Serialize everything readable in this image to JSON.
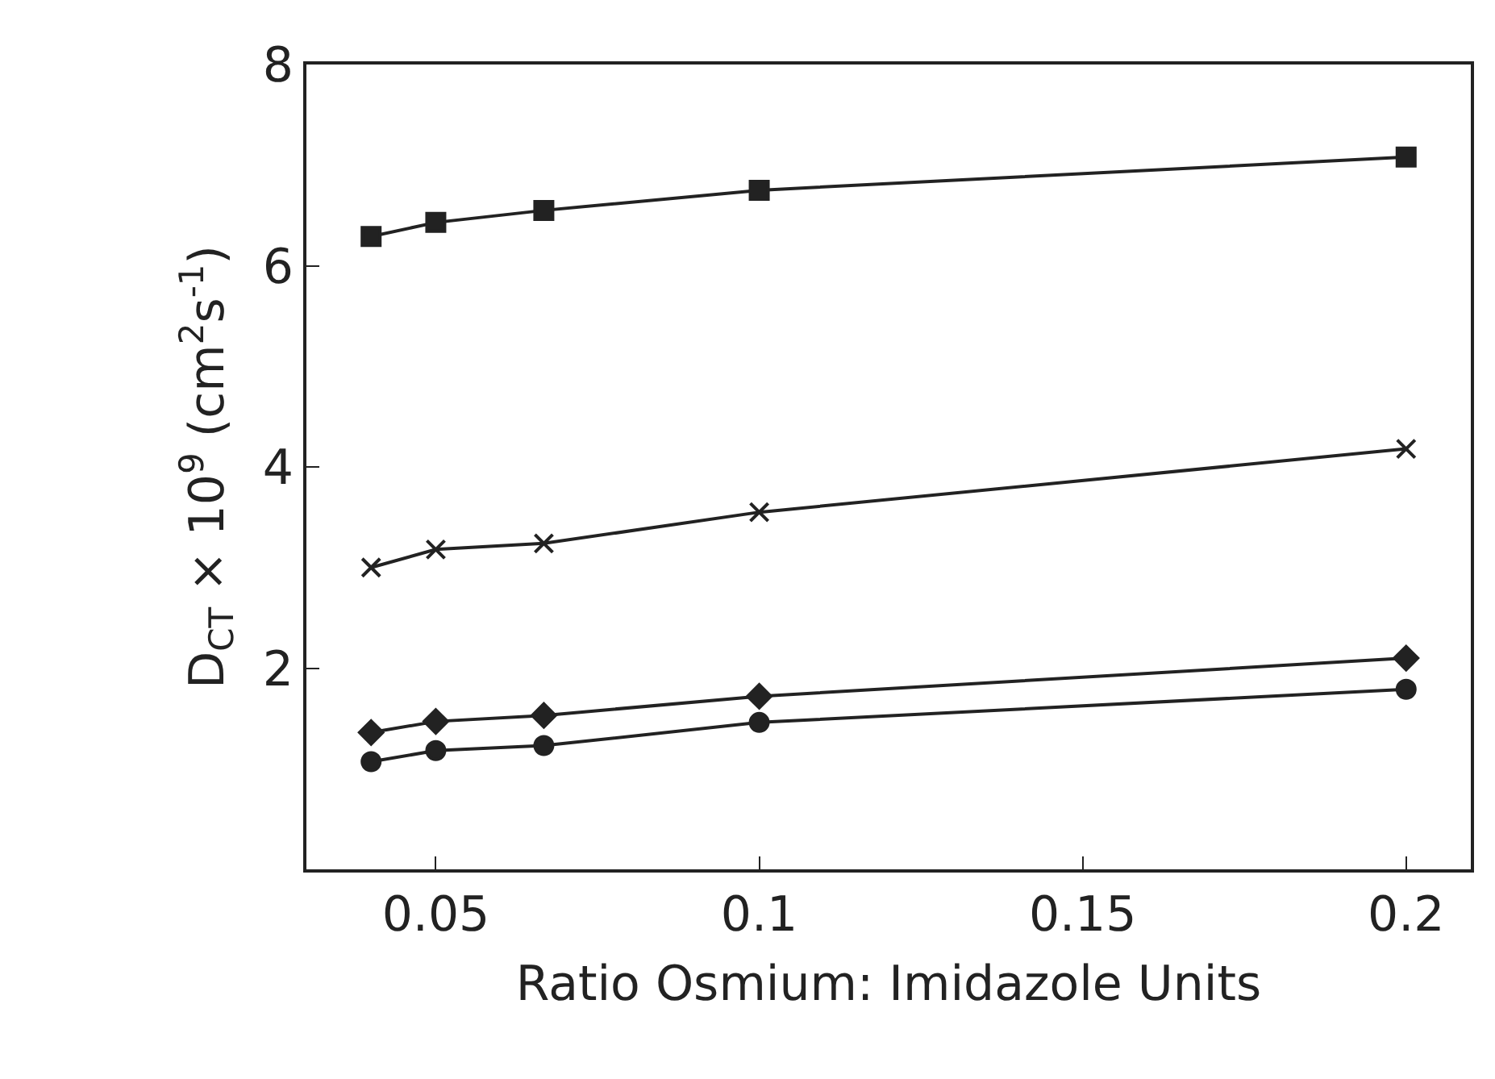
{
  "chart_data": {
    "type": "line",
    "xlabel": "Ratio Osmium: Imidazole Units",
    "ylabel": "D$_{CT}$ × 10$^{9}$ (cm$^{2}$s$^{-1}$)",
    "x": [
      0.04,
      0.05,
      0.0667,
      0.1,
      0.2
    ],
    "xlim": [
      0.03,
      0.21
    ],
    "xticks": [
      0.05,
      0.1,
      0.15,
      0.2
    ],
    "ylim": [
      0,
      8
    ],
    "yticks": [
      2,
      4,
      6,
      8
    ],
    "line_style": "solid",
    "series": [
      {
        "color": "#222222",
        "marker": "square",
        "values": [
          6.29,
          6.43,
          6.55,
          6.75,
          7.08
        ]
      },
      {
        "color": "#222222",
        "marker": "cross",
        "values": [
          3.0,
          3.18,
          3.24,
          3.55,
          4.18
        ]
      },
      {
        "color": "#222222",
        "marker": "diamond",
        "values": [
          1.36,
          1.47,
          1.53,
          1.72,
          2.1
        ]
      },
      {
        "color": "#222222",
        "marker": "circle",
        "values": [
          1.07,
          1.18,
          1.23,
          1.46,
          1.79
        ]
      }
    ]
  }
}
